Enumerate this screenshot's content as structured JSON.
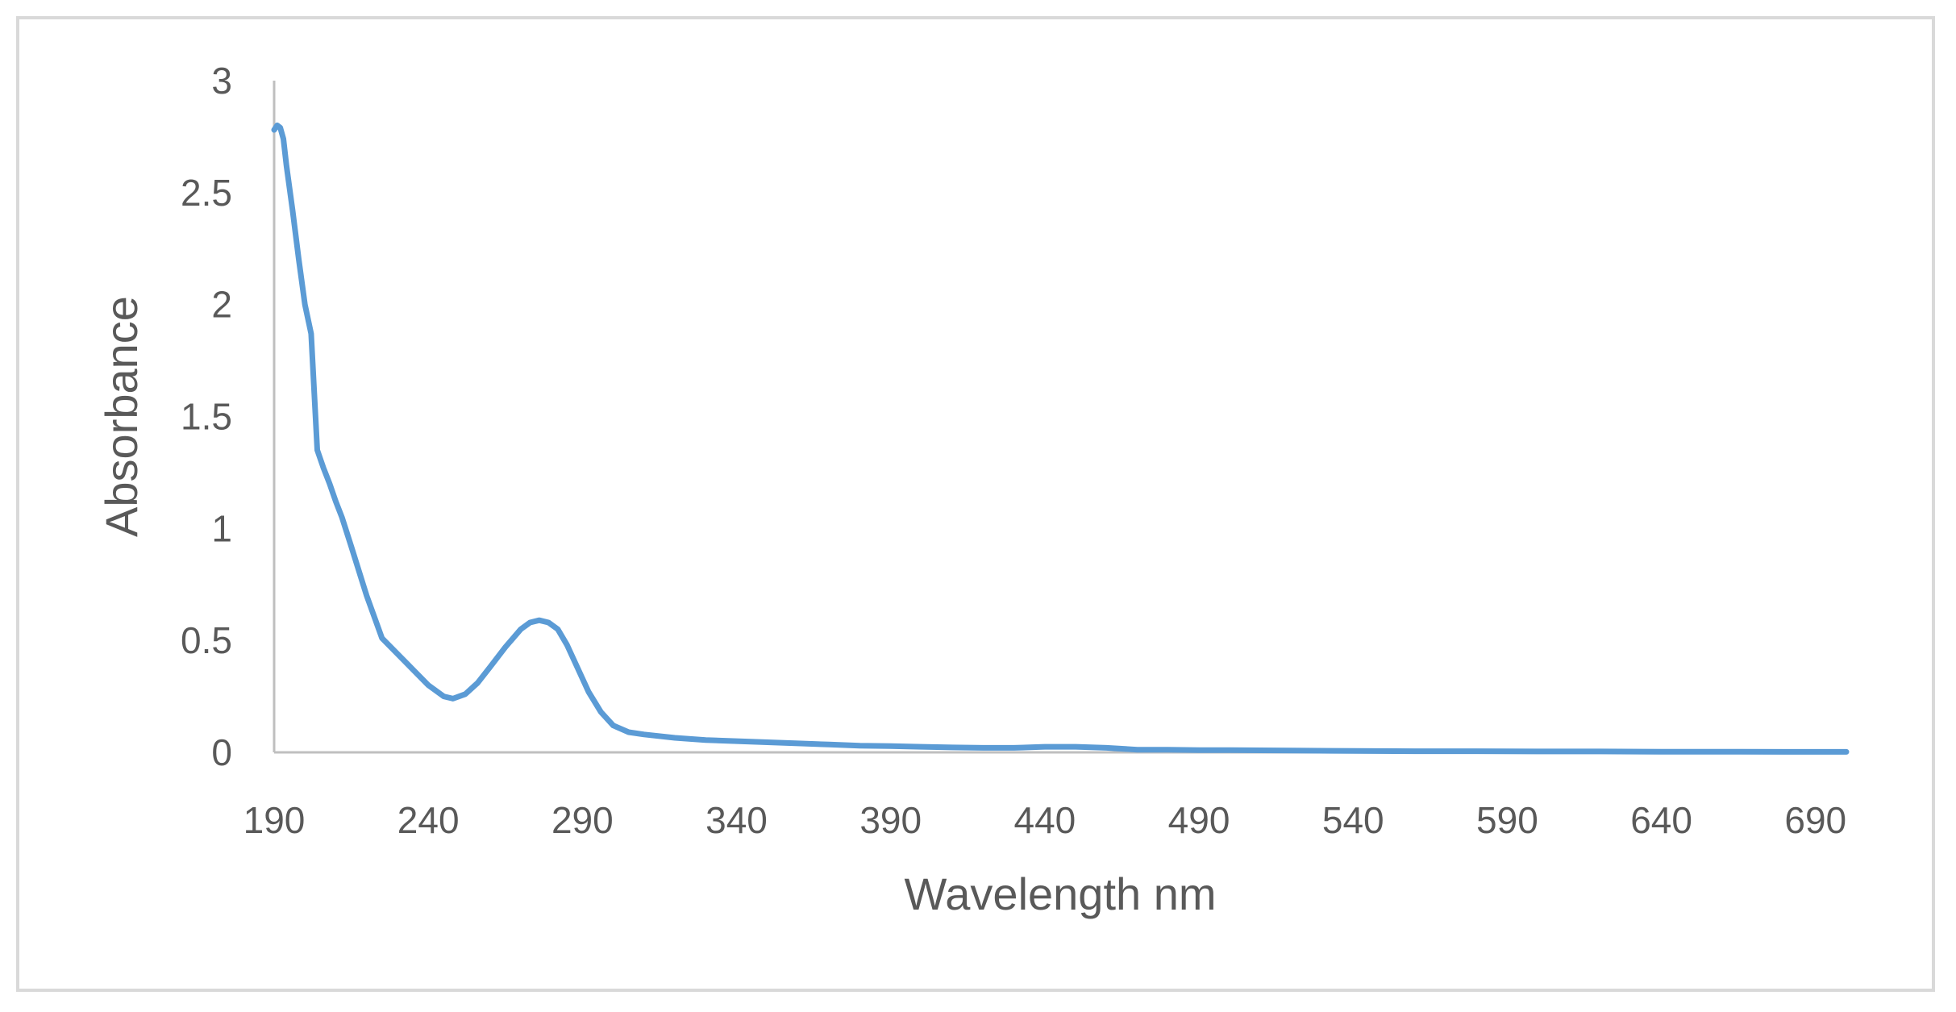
{
  "chart_data": {
    "type": "line",
    "title": "",
    "xlabel": "Wavelength nm",
    "ylabel": "Absorbance",
    "xlim": [
      190,
      700
    ],
    "ylim": [
      0,
      3
    ],
    "x_ticks": [
      190,
      240,
      290,
      340,
      390,
      440,
      490,
      540,
      590,
      640,
      690
    ],
    "y_ticks": [
      0,
      0.5,
      1,
      1.5,
      2,
      2.5,
      3
    ],
    "x_tick_labels": [
      "190",
      "240",
      "290",
      "340",
      "390",
      "440",
      "490",
      "540",
      "590",
      "640",
      "690"
    ],
    "y_tick_labels": [
      "0",
      "0.5",
      "1",
      "1.5",
      "2",
      "2.5",
      "3"
    ],
    "grid": false,
    "legend": "none",
    "series": [
      {
        "color": "#5b9bd5",
        "x": [
          190,
          191,
          192,
          193,
          194,
          196,
          198,
          200,
          202,
          204,
          206,
          208,
          210,
          212,
          215,
          220,
          225,
          230,
          235,
          240,
          245,
          248,
          252,
          256,
          260,
          265,
          270,
          273,
          276,
          279,
          282,
          285,
          288,
          292,
          296,
          300,
          305,
          310,
          320,
          330,
          340,
          350,
          360,
          370,
          380,
          390,
          400,
          410,
          420,
          430,
          440,
          450,
          460,
          470,
          480,
          490,
          500,
          520,
          540,
          560,
          580,
          600,
          620,
          640,
          660,
          680,
          700
        ],
        "y": [
          2.78,
          2.8,
          2.79,
          2.74,
          2.62,
          2.42,
          2.2,
          2.0,
          1.87,
          1.35,
          1.27,
          1.2,
          1.12,
          1.05,
          0.92,
          0.7,
          0.51,
          0.44,
          0.37,
          0.3,
          0.25,
          0.24,
          0.26,
          0.31,
          0.38,
          0.47,
          0.55,
          0.58,
          0.59,
          0.58,
          0.55,
          0.48,
          0.39,
          0.27,
          0.18,
          0.12,
          0.09,
          0.08,
          0.065,
          0.055,
          0.05,
          0.045,
          0.04,
          0.035,
          0.03,
          0.028,
          0.025,
          0.022,
          0.02,
          0.02,
          0.025,
          0.025,
          0.02,
          0.012,
          0.012,
          0.01,
          0.01,
          0.008,
          0.006,
          0.005,
          0.005,
          0.004,
          0.004,
          0.003,
          0.003,
          0.002,
          0.002
        ]
      }
    ]
  }
}
